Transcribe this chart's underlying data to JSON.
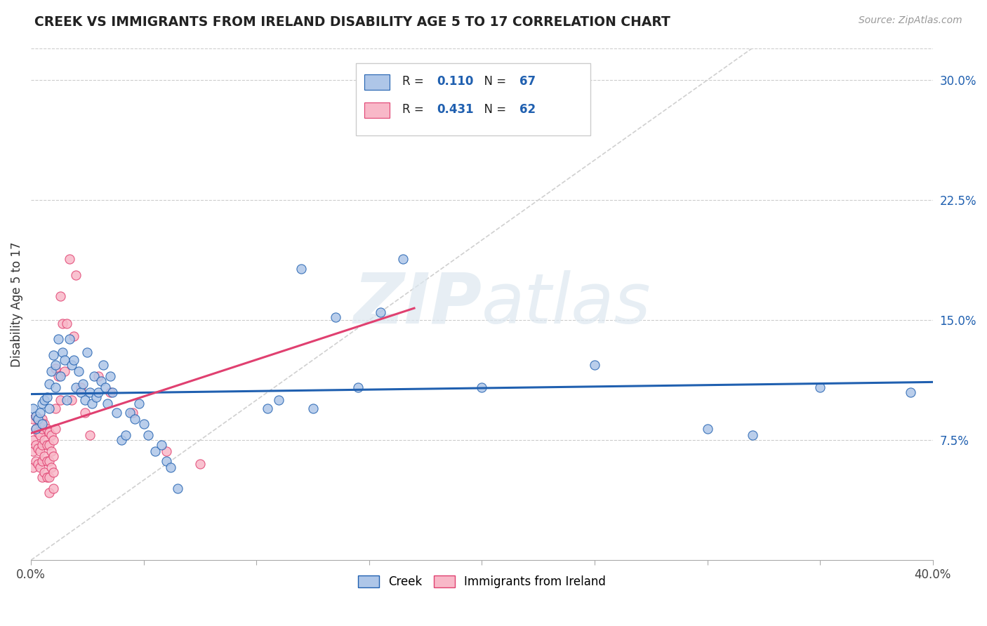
{
  "title": "CREEK VS IMMIGRANTS FROM IRELAND DISABILITY AGE 5 TO 17 CORRELATION CHART",
  "source": "Source: ZipAtlas.com",
  "ylabel": "Disability Age 5 to 17",
  "xlim": [
    0.0,
    0.4
  ],
  "ylim": [
    0.0,
    0.32
  ],
  "creek_R": 0.11,
  "creek_N": 67,
  "ireland_R": 0.431,
  "ireland_N": 62,
  "creek_color": "#aec6e8",
  "creek_line_color": "#2060b0",
  "ireland_color": "#f8b8c8",
  "ireland_line_color": "#e04070",
  "diagonal_color": "#d0d0d0",
  "watermark_zip": "ZIP",
  "watermark_atlas": "atlas",
  "creek_x": [
    0.001,
    0.002,
    0.002,
    0.003,
    0.004,
    0.005,
    0.005,
    0.006,
    0.007,
    0.008,
    0.008,
    0.009,
    0.01,
    0.011,
    0.011,
    0.012,
    0.013,
    0.014,
    0.015,
    0.016,
    0.017,
    0.018,
    0.019,
    0.02,
    0.021,
    0.022,
    0.023,
    0.024,
    0.025,
    0.026,
    0.027,
    0.028,
    0.029,
    0.03,
    0.031,
    0.032,
    0.033,
    0.034,
    0.035,
    0.036,
    0.038,
    0.04,
    0.042,
    0.044,
    0.046,
    0.048,
    0.05,
    0.052,
    0.055,
    0.058,
    0.06,
    0.062,
    0.065,
    0.105,
    0.11,
    0.12,
    0.125,
    0.135,
    0.145,
    0.155,
    0.165,
    0.2,
    0.25,
    0.3,
    0.32,
    0.35,
    0.39
  ],
  "creek_y": [
    0.095,
    0.09,
    0.082,
    0.088,
    0.092,
    0.098,
    0.085,
    0.1,
    0.102,
    0.11,
    0.095,
    0.118,
    0.128,
    0.122,
    0.108,
    0.138,
    0.115,
    0.13,
    0.125,
    0.1,
    0.138,
    0.122,
    0.125,
    0.108,
    0.118,
    0.105,
    0.11,
    0.1,
    0.13,
    0.105,
    0.098,
    0.115,
    0.102,
    0.105,
    0.112,
    0.122,
    0.108,
    0.098,
    0.115,
    0.105,
    0.092,
    0.075,
    0.078,
    0.092,
    0.088,
    0.098,
    0.085,
    0.078,
    0.068,
    0.072,
    0.062,
    0.058,
    0.045,
    0.095,
    0.1,
    0.182,
    0.095,
    0.152,
    0.108,
    0.155,
    0.188,
    0.108,
    0.122,
    0.082,
    0.078,
    0.108,
    0.105
  ],
  "ireland_x": [
    0.001,
    0.001,
    0.001,
    0.001,
    0.002,
    0.002,
    0.002,
    0.002,
    0.003,
    0.003,
    0.003,
    0.003,
    0.004,
    0.004,
    0.004,
    0.004,
    0.005,
    0.005,
    0.005,
    0.005,
    0.005,
    0.006,
    0.006,
    0.006,
    0.006,
    0.007,
    0.007,
    0.007,
    0.007,
    0.008,
    0.008,
    0.008,
    0.008,
    0.008,
    0.009,
    0.009,
    0.009,
    0.01,
    0.01,
    0.01,
    0.01,
    0.011,
    0.011,
    0.011,
    0.012,
    0.013,
    0.013,
    0.014,
    0.015,
    0.016,
    0.017,
    0.018,
    0.019,
    0.02,
    0.022,
    0.024,
    0.026,
    0.03,
    0.035,
    0.045,
    0.06,
    0.075
  ],
  "ireland_y": [
    0.088,
    0.075,
    0.068,
    0.058,
    0.09,
    0.082,
    0.072,
    0.062,
    0.088,
    0.08,
    0.07,
    0.06,
    0.085,
    0.078,
    0.068,
    0.058,
    0.088,
    0.082,
    0.072,
    0.062,
    0.052,
    0.085,
    0.075,
    0.065,
    0.055,
    0.082,
    0.072,
    0.062,
    0.052,
    0.08,
    0.072,
    0.062,
    0.052,
    0.042,
    0.078,
    0.068,
    0.058,
    0.075,
    0.065,
    0.055,
    0.045,
    0.12,
    0.095,
    0.082,
    0.115,
    0.165,
    0.1,
    0.148,
    0.118,
    0.148,
    0.188,
    0.1,
    0.14,
    0.178,
    0.108,
    0.092,
    0.078,
    0.115,
    0.105,
    0.092,
    0.068,
    0.06
  ]
}
